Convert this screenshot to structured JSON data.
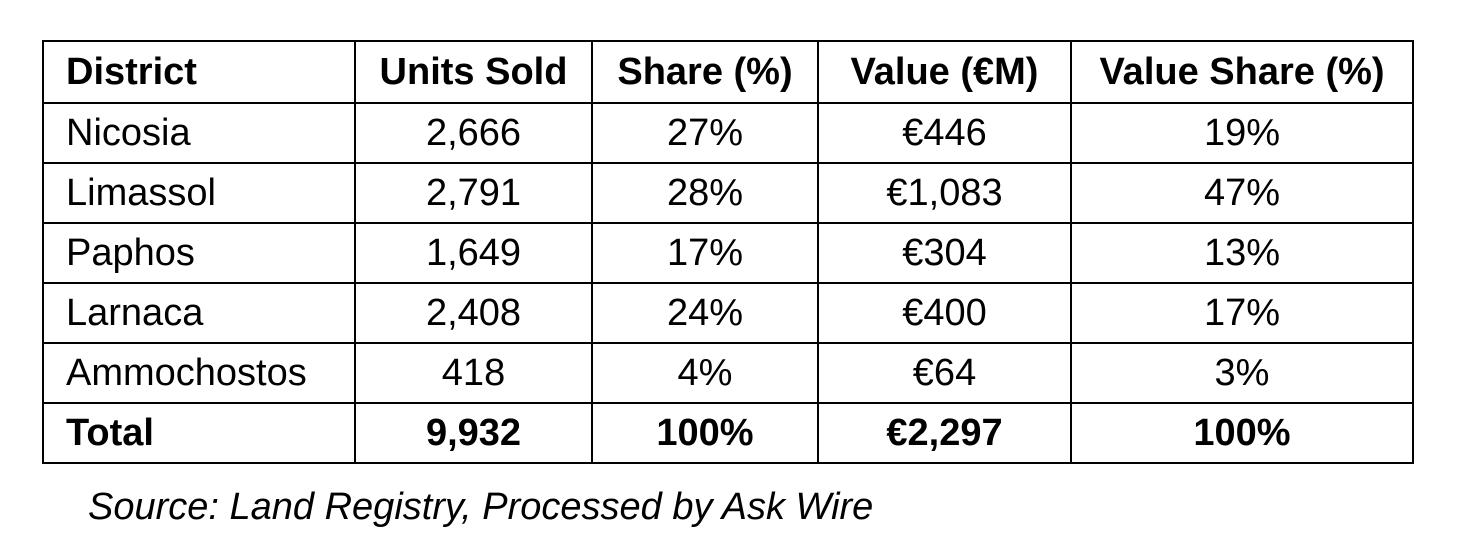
{
  "chart_data": {
    "type": "table",
    "columns": [
      "District",
      "Units Sold",
      "Share (%)",
      "Value (€M)",
      "Value Share (%)"
    ],
    "rows": [
      [
        "Nicosia",
        "2,666",
        "27%",
        "€446",
        "19%"
      ],
      [
        "Limassol",
        "2,791",
        "28%",
        "€1,083",
        "47%"
      ],
      [
        "Paphos",
        "1,649",
        "17%",
        "€304",
        "13%"
      ],
      [
        "Larnaca",
        "2,408",
        "24%",
        "€400",
        "17%"
      ],
      [
        "Ammochostos",
        "418",
        "4%",
        "€64",
        "3%"
      ],
      [
        "Total",
        "9,932",
        "100%",
        "€2,297",
        "100%"
      ]
    ],
    "source": "Source: Land Registry, Processed by Ask Wire"
  }
}
